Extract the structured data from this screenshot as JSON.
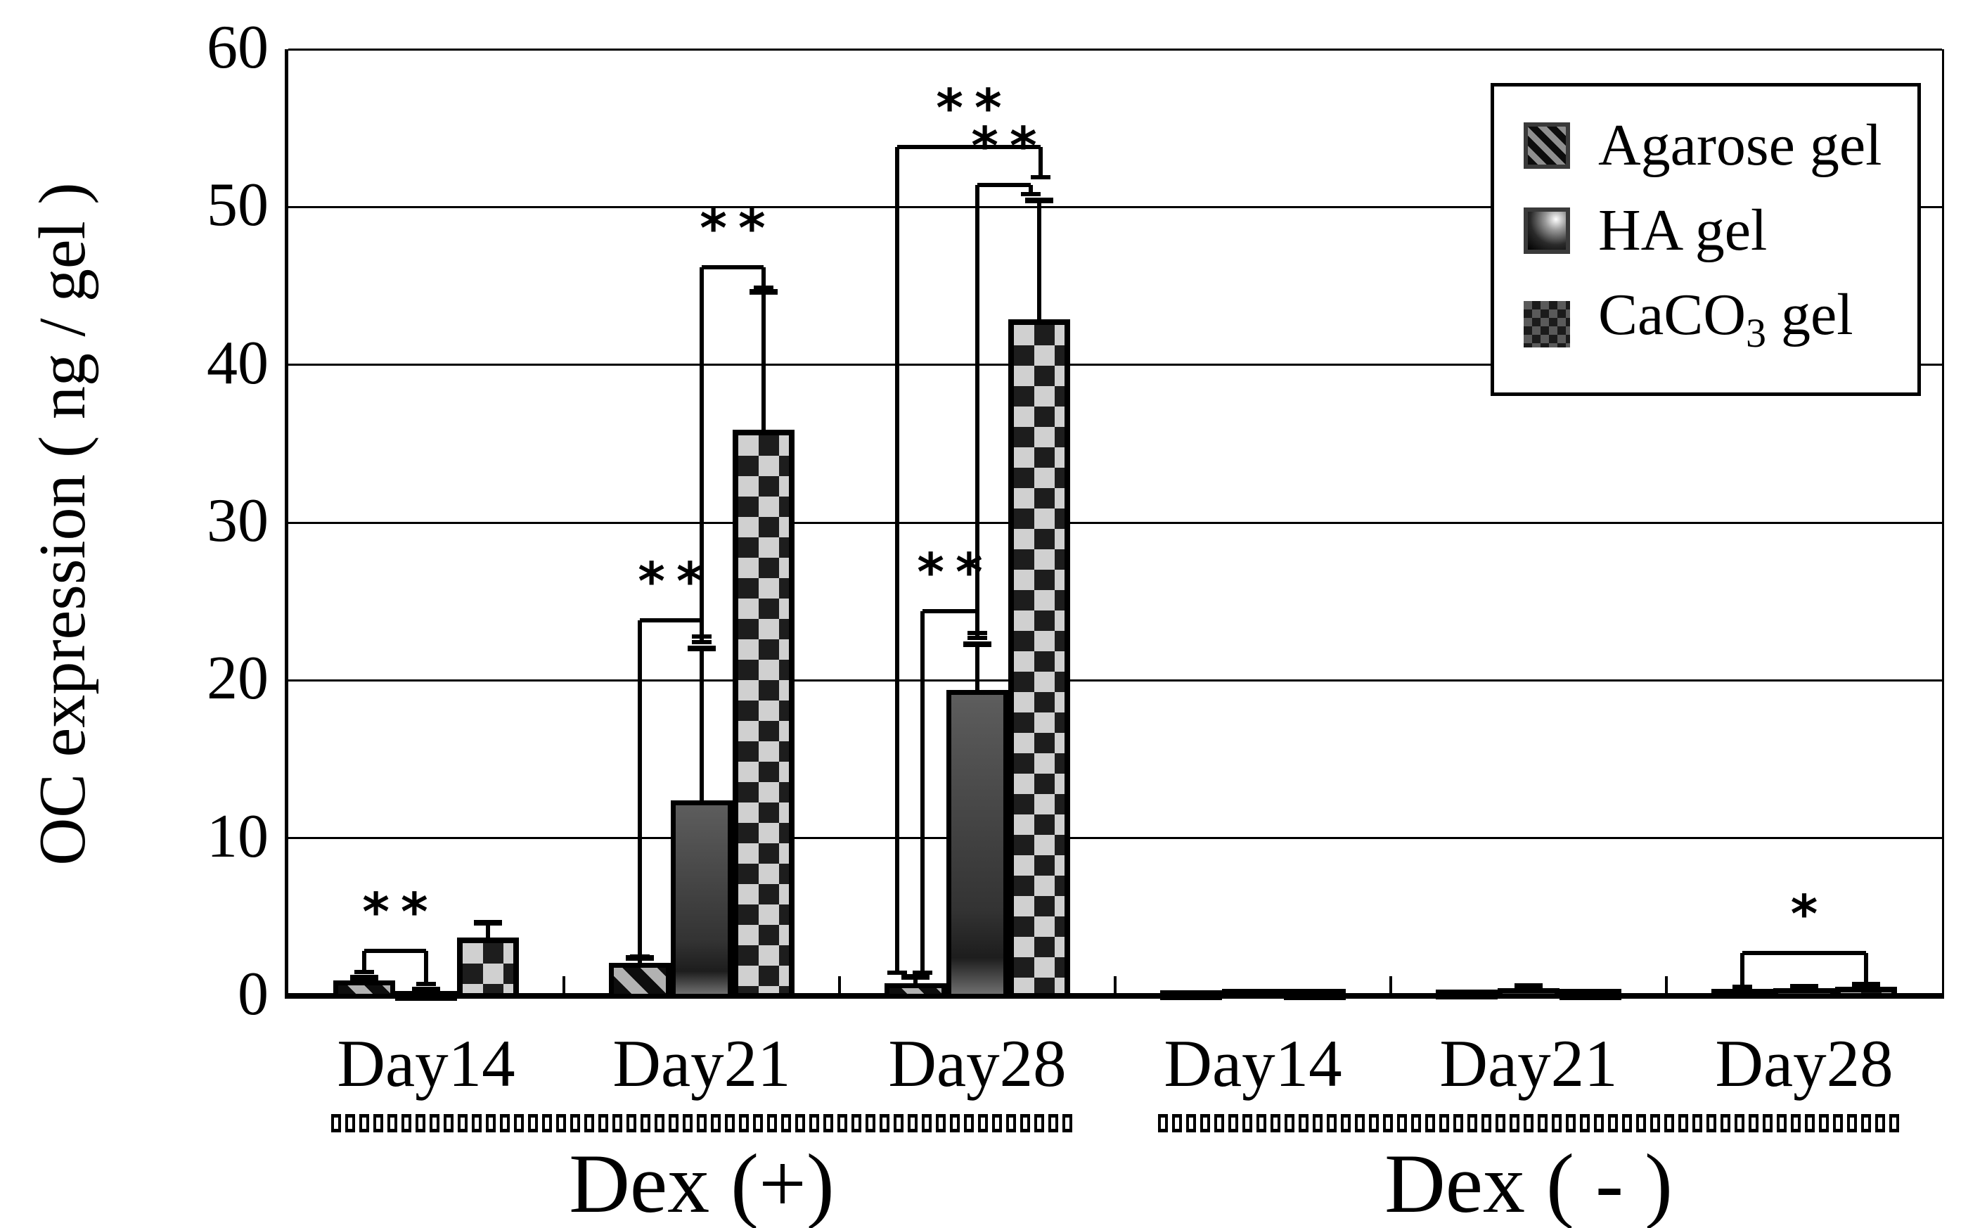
{
  "figure": {
    "background": "#ffffff",
    "ink": "#000000"
  },
  "chart_data": {
    "type": "bar",
    "title": "",
    "ylabel": "OC expression ( ng / gel )",
    "xlabel": "",
    "ylim": [
      0,
      60
    ],
    "yticks": [
      "0",
      "10",
      "20",
      "30",
      "40",
      "50",
      "60"
    ],
    "grid": "horizontal",
    "legend_position": "top-right",
    "group_labels": [
      "Day14",
      "Day21",
      "Day28",
      "Day14",
      "Day21",
      "Day28"
    ],
    "conditions": [
      {
        "label": "Dex (+)",
        "start_group": 0,
        "end_group": 2
      },
      {
        "label": "Dex ( - )",
        "start_group": 3,
        "end_group": 5
      }
    ],
    "series": [
      {
        "name": "Agarose gel",
        "pattern": "agarose",
        "values": [
          1.0,
          2.1,
          0.8,
          0.35,
          0.4,
          0.45
        ],
        "errors": [
          0.15,
          0.3,
          0.4,
          0,
          0,
          0
        ]
      },
      {
        "name": "HA gel",
        "pattern": "ha",
        "values": [
          0.3,
          12.4,
          19.4,
          0.45,
          0.5,
          0.5
        ],
        "errors": [
          0.1,
          9.6,
          2.9,
          0,
          0.12,
          0.1
        ]
      },
      {
        "name": "CaCO3 gel",
        "pattern": "caco",
        "values": [
          3.7,
          35.9,
          42.9,
          0.45,
          0.45,
          0.6
        ],
        "errors": [
          0.95,
          8.7,
          7.5,
          0,
          0,
          0.12
        ]
      }
    ],
    "legend": [
      {
        "pre": "Agarose gel",
        "sub": "",
        "post": "",
        "pattern": "agarose"
      },
      {
        "pre": "HA gel",
        "sub": "",
        "post": "",
        "pattern": "ha"
      },
      {
        "pre": "CaCO",
        "sub": "3",
        "post": " gel",
        "pattern": "caco"
      }
    ],
    "significance": [
      {
        "group": 0,
        "from": 0,
        "to": 1,
        "y": 2.85,
        "foot_left": 1.5,
        "foot_right": 0.75,
        "dx1": 0,
        "dx2": 0,
        "label": "**"
      },
      {
        "group": 1,
        "from": 0,
        "to": 1,
        "y": 23.8,
        "foot_left": 2.5,
        "foot_right": 22.4,
        "dx1": 0,
        "dx2": 0,
        "label": "**"
      },
      {
        "group": 1,
        "from": 1,
        "to": 2,
        "y": 46.2,
        "foot_left": 22.8,
        "foot_right": 44.9,
        "dx1": 0,
        "dx2": 0,
        "label": "**"
      },
      {
        "group": 2,
        "from": 0,
        "to": 1,
        "y": 24.4,
        "foot_left": 1.45,
        "foot_right": 22.7,
        "dx1": 10,
        "dx2": 0,
        "label": "**"
      },
      {
        "group": 2,
        "from": 1,
        "to": 2,
        "y": 51.4,
        "foot_left": 23.0,
        "foot_right": 50.8,
        "dx1": 0,
        "dx2": -12,
        "label": "**"
      },
      {
        "group": 2,
        "from": 0,
        "to": 2,
        "y": 53.8,
        "foot_left": 1.45,
        "foot_right": 51.9,
        "dx1": -26,
        "dx2": 2,
        "label": "**"
      },
      {
        "group": 5,
        "from": 0,
        "to": 2,
        "y": 2.7,
        "foot_left": 0.6,
        "foot_right": 0.7,
        "dx1": 0,
        "dx2": 0,
        "label": "*"
      }
    ]
  }
}
